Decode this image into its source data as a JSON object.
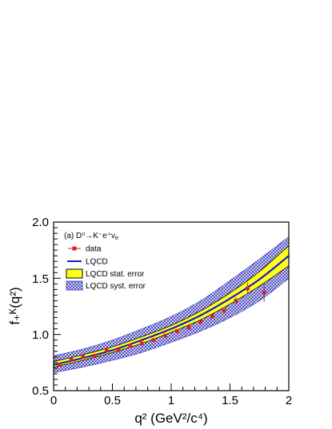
{
  "chart_data": {
    "type": "line",
    "panel_label": "(a) D⁰→K⁻e⁺ν",
    "panel_label_sub": "e",
    "ylabel": "f₊ᴷ(q²)",
    "xlabel": "q² (GeV²/c⁴)",
    "xlim": [
      0,
      2
    ],
    "ylim": [
      0.5,
      2.0
    ],
    "x_ticks": [
      "0",
      "0.5",
      "1",
      "1.5",
      "2"
    ],
    "y_ticks": [
      "0.5",
      "1.0",
      "1.5",
      "2.0"
    ],
    "grid": false,
    "legend_position": "top-left",
    "legend": [
      {
        "label": "data",
        "kind": "marker"
      },
      {
        "label": "LQCD",
        "kind": "line"
      },
      {
        "label": "LQCD stat. error",
        "kind": "yellow-box"
      },
      {
        "label": "LQCD syst. error",
        "kind": "hatched-box"
      }
    ],
    "colors": {
      "data": "#e0201b",
      "lqcd_line": "#1b1bd0",
      "stat_band": "#ffff1a",
      "syst_hatch": "#3434b8"
    },
    "series": [
      {
        "name": "data",
        "x": [
          0.05,
          0.15,
          0.25,
          0.35,
          0.45,
          0.55,
          0.65,
          0.75,
          0.85,
          0.95,
          1.05,
          1.15,
          1.25,
          1.35,
          1.45,
          1.55,
          1.65,
          1.79
        ],
        "y": [
          0.73,
          0.78,
          0.8,
          0.81,
          0.86,
          0.86,
          0.9,
          0.92,
          0.95,
          0.99,
          1.03,
          1.06,
          1.11,
          1.16,
          1.21,
          1.3,
          1.41,
          1.37
        ],
        "yerr": [
          0.01,
          0.01,
          0.01,
          0.01,
          0.01,
          0.01,
          0.01,
          0.01,
          0.01,
          0.01,
          0.01,
          0.01,
          0.015,
          0.02,
          0.02,
          0.03,
          0.05,
          0.08
        ]
      },
      {
        "name": "LQCD",
        "x": [
          0,
          0.25,
          0.5,
          0.75,
          1.0,
          1.25,
          1.5,
          1.75,
          2.0
        ],
        "y": [
          0.73,
          0.79,
          0.86,
          0.95,
          1.05,
          1.17,
          1.32,
          1.49,
          1.7
        ]
      },
      {
        "name": "LQCD stat. error",
        "x": [
          0,
          0.25,
          0.5,
          0.75,
          1.0,
          1.25,
          1.5,
          1.75,
          2.0
        ],
        "low": [
          0.71,
          0.77,
          0.84,
          0.92,
          1.02,
          1.13,
          1.27,
          1.43,
          1.61
        ],
        "high": [
          0.76,
          0.82,
          0.89,
          0.98,
          1.08,
          1.21,
          1.37,
          1.56,
          1.79
        ]
      },
      {
        "name": "LQCD syst. error",
        "x": [
          0,
          0.25,
          0.5,
          0.75,
          1.0,
          1.25,
          1.5,
          1.75,
          2.0
        ],
        "low": [
          0.66,
          0.71,
          0.77,
          0.84,
          0.93,
          1.03,
          1.15,
          1.3,
          1.5
        ],
        "high": [
          0.81,
          0.87,
          0.95,
          1.05,
          1.16,
          1.3,
          1.48,
          1.67,
          1.87
        ]
      }
    ]
  }
}
